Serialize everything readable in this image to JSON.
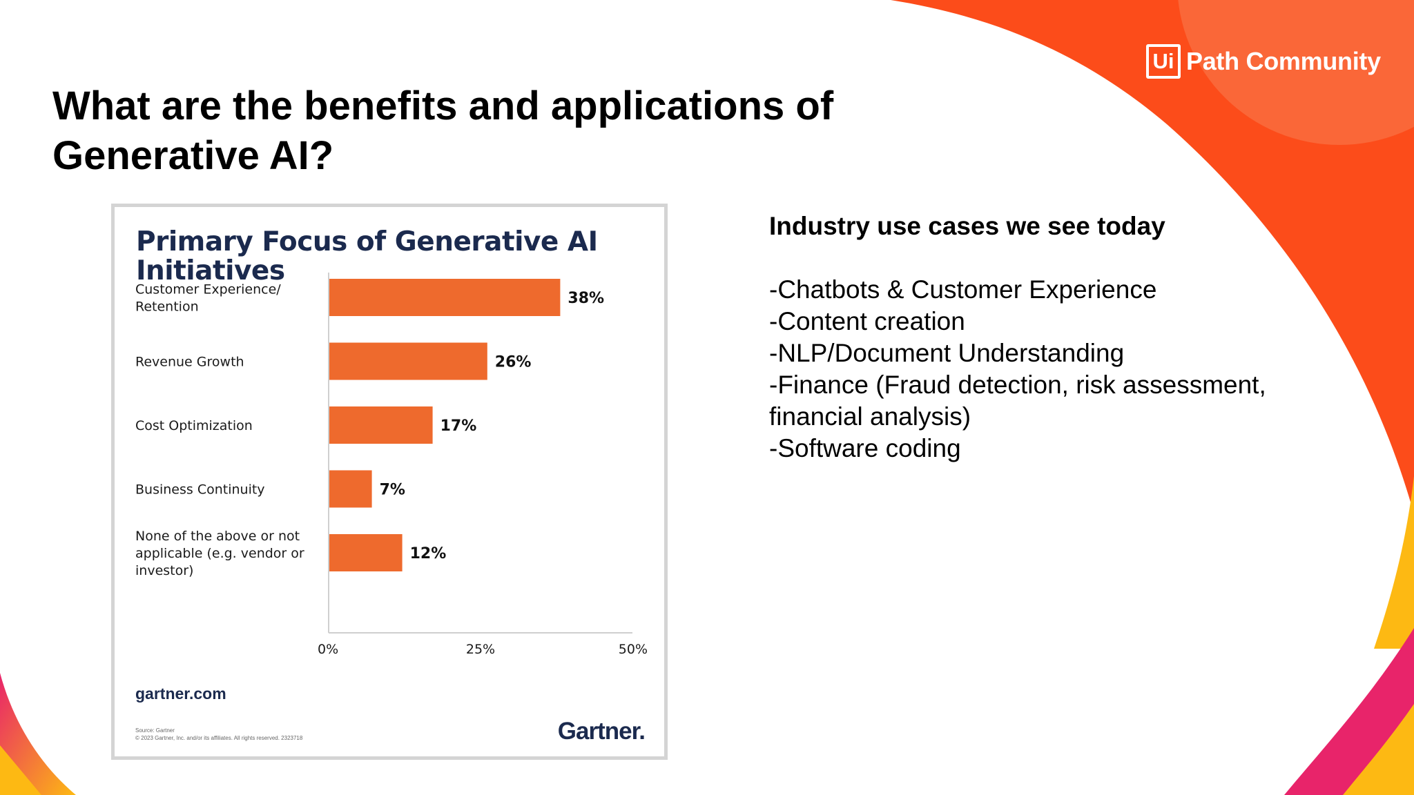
{
  "slide": {
    "title": "What are the benefits and applications of Generative AI?"
  },
  "brand": {
    "logo_box": "Ui",
    "logo_text": "Path Community",
    "colors": {
      "orange": "#FC4C1A",
      "orange_light": "#FA6A3C",
      "pink": "#E8246A",
      "yellow": "#FDB913"
    }
  },
  "use_cases": {
    "heading": "Industry use cases we see today",
    "items": [
      "-Chatbots & Customer Experience",
      "-Content creation",
      "-NLP/Document Understanding",
      "-Finance (Fraud detection, risk assessment,",
      "financial analysis)",
      "-Software coding"
    ]
  },
  "chart_data": {
    "type": "bar",
    "orientation": "horizontal",
    "title": "Primary Focus of Generative AI Initiatives",
    "categories": [
      [
        "Customer Experience/",
        "Retention"
      ],
      [
        "Revenue Growth"
      ],
      [
        "Cost Optimization"
      ],
      [
        "Business Continuity"
      ],
      [
        "None of the above or not",
        "applicable (e.g. vendor or",
        "investor)"
      ]
    ],
    "values": [
      38,
      26,
      17,
      7,
      12
    ],
    "data_labels": [
      "38%",
      "26%",
      "17%",
      "7%",
      "12%"
    ],
    "xlim": [
      0,
      50
    ],
    "x_ticks": [
      0,
      25,
      50
    ],
    "x_tick_labels": [
      "0%",
      "25%",
      "50%"
    ],
    "bar_color": "#EE6A2D",
    "grid": false,
    "legend": "none",
    "footer_site": "gartner.com",
    "source_lines": [
      "Source: Gartner",
      "© 2023 Gartner, Inc. and/or its affiliates. All rights reserved. 2323718"
    ],
    "brand": "Gartner."
  }
}
